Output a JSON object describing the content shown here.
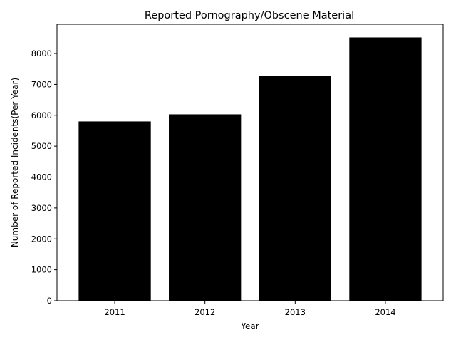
{
  "chart_data": {
    "type": "bar",
    "title": "Reported Pornography/Obscene Material",
    "xlabel": "Year",
    "ylabel": "Number of Reported Incidents(Per Year)",
    "categories": [
      "2011",
      "2012",
      "2013",
      "2014"
    ],
    "values": [
      5800,
      6030,
      7280,
      8520
    ],
    "ylim": [
      0,
      8946
    ],
    "yticks": [
      0,
      1000,
      2000,
      3000,
      4000,
      5000,
      6000,
      7000,
      8000
    ],
    "bar_color": "#000000",
    "grid": false,
    "legend": "none"
  }
}
